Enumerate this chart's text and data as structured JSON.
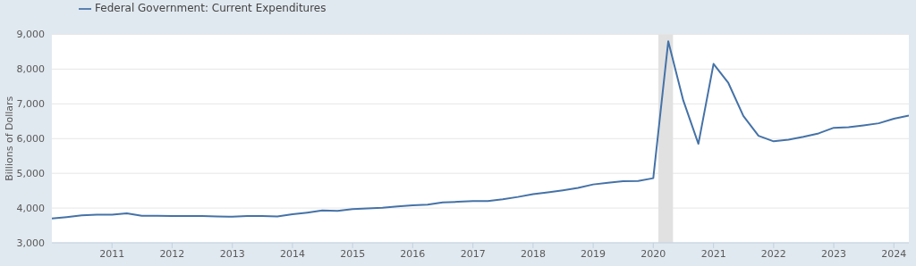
{
  "chart_data": {
    "type": "line",
    "ylabel": "Billions of Dollars",
    "x": [
      "2010-01",
      "2010-04",
      "2010-07",
      "2010-10",
      "2011-01",
      "2011-04",
      "2011-07",
      "2011-10",
      "2012-01",
      "2012-04",
      "2012-07",
      "2012-10",
      "2013-01",
      "2013-04",
      "2013-07",
      "2013-10",
      "2014-01",
      "2014-04",
      "2014-07",
      "2014-10",
      "2015-01",
      "2015-04",
      "2015-07",
      "2015-10",
      "2016-01",
      "2016-04",
      "2016-07",
      "2016-10",
      "2017-01",
      "2017-04",
      "2017-07",
      "2017-10",
      "2018-01",
      "2018-04",
      "2018-07",
      "2018-10",
      "2019-01",
      "2019-04",
      "2019-07",
      "2019-10",
      "2020-01",
      "2020-04",
      "2020-07",
      "2020-10",
      "2021-01",
      "2021-04",
      "2021-07",
      "2021-10",
      "2022-01",
      "2022-04",
      "2022-07",
      "2022-10",
      "2023-01",
      "2023-04",
      "2023-07",
      "2023-10",
      "2024-01",
      "2024-04"
    ],
    "series": [
      {
        "name": "Federal Government: Current Expenditures",
        "color": "#4572a7",
        "values": [
          3700,
          3740,
          3790,
          3810,
          3810,
          3850,
          3780,
          3780,
          3770,
          3770,
          3770,
          3760,
          3750,
          3770,
          3770,
          3760,
          3820,
          3870,
          3930,
          3920,
          3970,
          3990,
          4010,
          4050,
          4080,
          4100,
          4160,
          4180,
          4200,
          4200,
          4250,
          4320,
          4400,
          4450,
          4510,
          4580,
          4680,
          4730,
          4770,
          4780,
          4860,
          8800,
          7100,
          5850,
          8150,
          7600,
          6650,
          6080,
          5920,
          5970,
          6050,
          6150,
          6310,
          6330,
          6380,
          6440,
          6570,
          6660
        ]
      }
    ],
    "xlim": [
      "2010-01",
      "2024-04"
    ],
    "xticks": [
      "2011",
      "2012",
      "2013",
      "2014",
      "2015",
      "2016",
      "2017",
      "2018",
      "2019",
      "2020",
      "2021",
      "2022",
      "2023",
      "2024"
    ],
    "ylim": [
      3000,
      9000
    ],
    "yticks": [
      {
        "value": 3000,
        "label": "3,000"
      },
      {
        "value": 4000,
        "label": "4,000"
      },
      {
        "value": 5000,
        "label": "5,000"
      },
      {
        "value": 6000,
        "label": "6,000"
      },
      {
        "value": 7000,
        "label": "7,000"
      },
      {
        "value": 8000,
        "label": "8,000"
      },
      {
        "value": 9000,
        "label": "9,000"
      }
    ],
    "bands": [
      {
        "axis": "x",
        "from": "2020-02-01",
        "to": "2020-04-30",
        "color": "#e1e1e1"
      }
    ],
    "grid": "y",
    "legend": "top left",
    "marker": "none",
    "line_style": "solid"
  }
}
